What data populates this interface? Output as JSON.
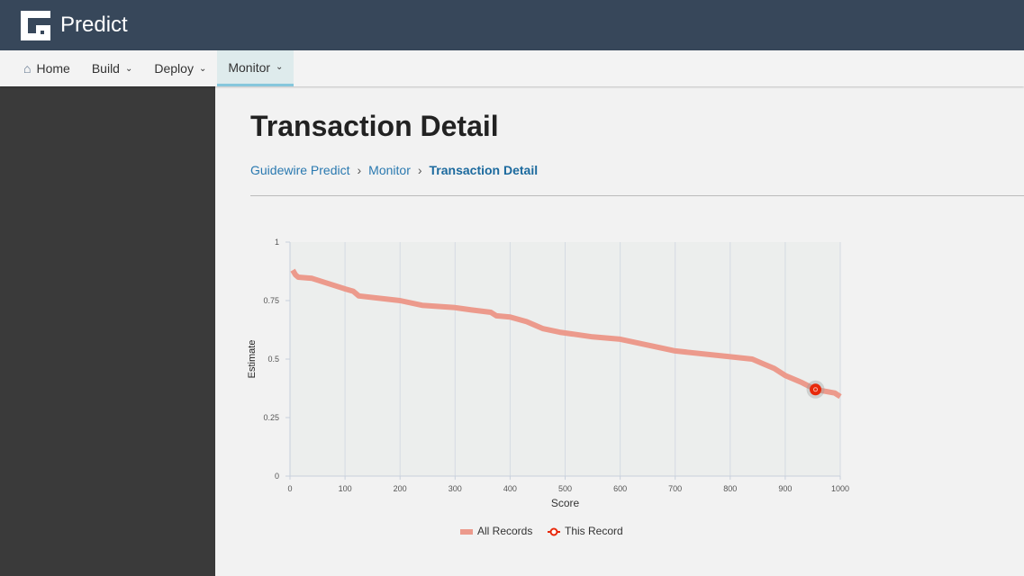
{
  "header": {
    "app_title": "Predict"
  },
  "nav": {
    "items": [
      {
        "label": "Home"
      },
      {
        "label": "Build"
      },
      {
        "label": "Deploy"
      },
      {
        "label": "Monitor",
        "active": true
      }
    ]
  },
  "page": {
    "title": "Transaction Detail"
  },
  "breadcrumb": [
    "Guidewire Predict",
    "Monitor",
    "Transaction Detail"
  ],
  "chart_data": {
    "type": "line",
    "xlabel": "Score",
    "ylabel": "Estimate",
    "xlim": [
      0,
      1000
    ],
    "ylim": [
      0,
      1
    ],
    "x_ticks": [
      "0",
      "100",
      "200",
      "300",
      "400",
      "500",
      "600",
      "700",
      "800",
      "900",
      "1000"
    ],
    "y_ticks": [
      "0",
      "0.25",
      "0.5",
      "0.75",
      "1"
    ],
    "grid": "vertical",
    "legend_position": "bottom",
    "series": [
      {
        "name": "All Records",
        "color": "#ec9a8c",
        "points": [
          [
            5,
            0.88
          ],
          [
            10,
            0.86
          ],
          [
            15,
            0.85
          ],
          [
            40,
            0.845
          ],
          [
            60,
            0.83
          ],
          [
            100,
            0.8
          ],
          [
            115,
            0.79
          ],
          [
            125,
            0.77
          ],
          [
            200,
            0.75
          ],
          [
            240,
            0.73
          ],
          [
            300,
            0.72
          ],
          [
            330,
            0.71
          ],
          [
            365,
            0.7
          ],
          [
            375,
            0.685
          ],
          [
            400,
            0.68
          ],
          [
            430,
            0.66
          ],
          [
            460,
            0.63
          ],
          [
            490,
            0.615
          ],
          [
            550,
            0.595
          ],
          [
            600,
            0.585
          ],
          [
            650,
            0.56
          ],
          [
            700,
            0.535
          ],
          [
            800,
            0.51
          ],
          [
            840,
            0.5
          ],
          [
            860,
            0.48
          ],
          [
            880,
            0.46
          ],
          [
            900,
            0.43
          ],
          [
            930,
            0.4
          ],
          [
            955,
            0.37
          ],
          [
            990,
            0.355
          ],
          [
            1000,
            0.34
          ]
        ]
      },
      {
        "name": "This Record",
        "color": "#e8290b",
        "points": [
          [
            955,
            0.37
          ]
        ]
      }
    ]
  }
}
